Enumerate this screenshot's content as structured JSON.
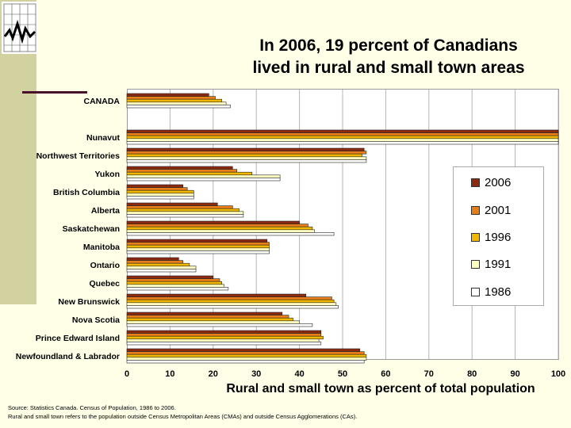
{
  "chart_data": {
    "type": "bar",
    "orientation": "horizontal",
    "title": "In 2006, 19 percent of Canadians lived in rural and small town areas",
    "title_lines": [
      "In 2006, 19 percent of Canadians",
      "lived in rural and small town areas"
    ],
    "xlabel": "Rural and small town as percent of total population",
    "xlim": [
      0,
      100
    ],
    "xticks": [
      0,
      10,
      20,
      30,
      40,
      50,
      60,
      70,
      80,
      90,
      100
    ],
    "grid": true,
    "legend_position": "right",
    "categories": [
      "CANADA",
      "Nunavut",
      "Northwest Territories",
      "Yukon",
      "British Columbia",
      "Alberta",
      "Saskatchewan",
      "Manitoba",
      "Ontario",
      "Quebec",
      "New Brunswick",
      "Nova Scotia",
      "Prince Edward Island",
      "Newfoundland & Labrador"
    ],
    "series": [
      {
        "name": "2006",
        "color": "#8b2a10",
        "values": [
          19,
          100,
          55,
          24.5,
          13,
          21,
          40,
          32.5,
          12,
          20,
          41.5,
          36,
          45,
          54
        ]
      },
      {
        "name": "2001",
        "color": "#e87e1a",
        "values": [
          20.5,
          100,
          55.5,
          25.5,
          14,
          24.5,
          42,
          33,
          13,
          21.5,
          47.5,
          37.5,
          45,
          55
        ]
      },
      {
        "name": "1996",
        "color": "#f2b800",
        "values": [
          22,
          100,
          54.5,
          29,
          15.5,
          26,
          43,
          33,
          14.5,
          22,
          48,
          38.5,
          45.5,
          55.5
        ]
      },
      {
        "name": "1991",
        "color": "#ffffc0",
        "values": [
          23,
          100,
          55.5,
          35.5,
          15.5,
          27,
          43.5,
          33,
          16,
          22.5,
          48.5,
          40,
          44.5,
          55.5
        ]
      },
      {
        "name": "1986",
        "color": "#ffffff",
        "values": [
          24,
          100,
          55.5,
          35.5,
          15.5,
          27,
          48,
          33,
          16,
          23.5,
          49,
          43,
          45,
          55
        ]
      }
    ]
  },
  "source_note": "Source:  Statistics Canada.  Census of Population, 1986 to 2006.",
  "definition_note": "Rural and small town refers to the population outside Census Metropolitan Areas (CMAs) and outside Census Agglomerations (CAs)."
}
